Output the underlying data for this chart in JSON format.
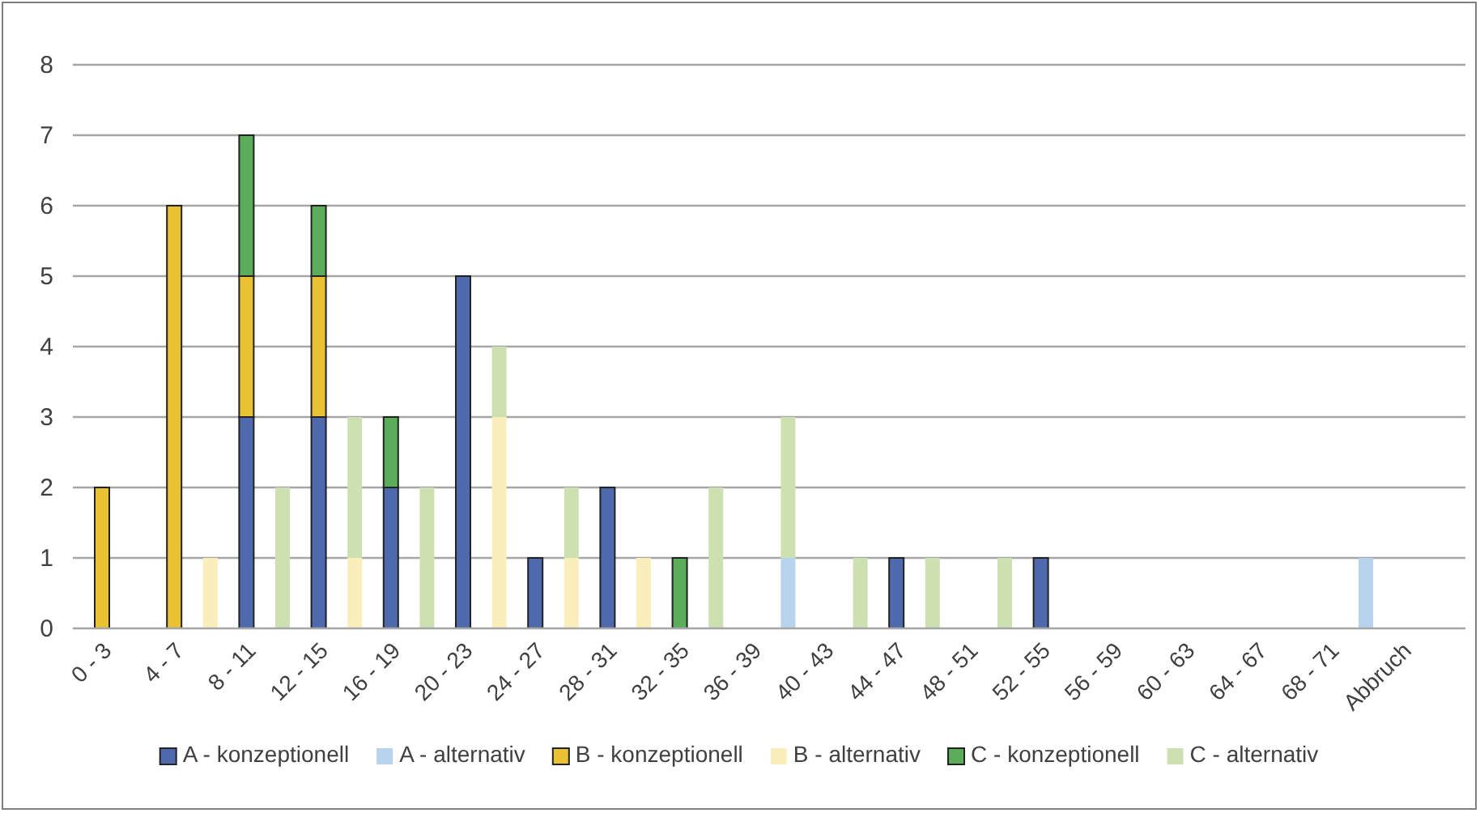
{
  "chart_data": {
    "type": "bar",
    "stacked": true,
    "categories": [
      "0 - 3",
      null,
      "4 - 7",
      null,
      "8 - 11",
      null,
      "12 - 15",
      null,
      "16 - 19",
      null,
      "20 - 23",
      null,
      "24 - 27",
      null,
      "28 - 31",
      null,
      "32 - 35",
      null,
      "36 - 39",
      null,
      "40 - 43",
      null,
      "44 - 47",
      null,
      "48 - 51",
      null,
      "52 - 55",
      null,
      "56 - 59",
      null,
      "60 - 63",
      null,
      "64 - 67",
      null,
      "68 - 71",
      null,
      "Abbruch",
      null
    ],
    "series": [
      {
        "name": "A - konzeptionell",
        "color": "#4e6aad",
        "values": [
          0,
          0,
          0,
          0,
          3,
          0,
          3,
          0,
          2,
          0,
          5,
          0,
          1,
          0,
          2,
          0,
          0,
          0,
          0,
          0,
          0,
          0,
          1,
          0,
          0,
          0,
          1,
          0,
          0,
          0,
          0,
          0,
          0,
          0,
          0,
          0,
          0,
          0
        ]
      },
      {
        "name": "A - alternativ",
        "color": "#b8d3ee",
        "values": [
          0,
          0,
          0,
          0,
          0,
          0,
          0,
          0,
          0,
          0,
          0,
          0,
          0,
          0,
          0,
          0,
          0,
          0,
          0,
          1,
          0,
          0,
          0,
          0,
          0,
          0,
          0,
          0,
          0,
          0,
          0,
          0,
          0,
          0,
          0,
          1,
          0,
          0
        ]
      },
      {
        "name": "B - konzeptionell",
        "color": "#e8c232",
        "values": [
          2,
          0,
          6,
          0,
          2,
          0,
          2,
          0,
          0,
          0,
          0,
          0,
          0,
          0,
          0,
          0,
          0,
          0,
          0,
          0,
          0,
          0,
          0,
          0,
          0,
          0,
          0,
          0,
          0,
          0,
          0,
          0,
          0,
          0,
          0,
          0,
          0,
          0
        ]
      },
      {
        "name": "B - alternativ",
        "color": "#faefbb",
        "values": [
          0,
          0,
          0,
          1,
          0,
          0,
          0,
          1,
          0,
          0,
          0,
          3,
          0,
          1,
          0,
          1,
          0,
          0,
          0,
          0,
          0,
          0,
          0,
          0,
          0,
          0,
          0,
          0,
          0,
          0,
          0,
          0,
          0,
          0,
          0,
          0,
          0,
          0
        ]
      },
      {
        "name": "C - konzeptionell",
        "color": "#5bad5a",
        "values": [
          0,
          0,
          0,
          0,
          2,
          0,
          1,
          0,
          1,
          0,
          0,
          0,
          0,
          0,
          0,
          0,
          1,
          0,
          0,
          0,
          0,
          0,
          0,
          0,
          0,
          0,
          0,
          0,
          0,
          0,
          0,
          0,
          0,
          0,
          0,
          0,
          0,
          0
        ]
      },
      {
        "name": "C - alternativ",
        "color": "#cde0b1",
        "values": [
          0,
          0,
          0,
          0,
          0,
          2,
          0,
          2,
          0,
          2,
          0,
          1,
          0,
          1,
          0,
          0,
          0,
          2,
          0,
          2,
          0,
          1,
          0,
          1,
          0,
          1,
          0,
          0,
          0,
          0,
          0,
          0,
          0,
          0,
          0,
          0,
          0,
          0
        ]
      }
    ],
    "ylim": [
      0,
      8
    ],
    "yticks": [
      0,
      1,
      2,
      3,
      4,
      5,
      6,
      7,
      8
    ],
    "grid": "y",
    "legend": "bottom"
  }
}
